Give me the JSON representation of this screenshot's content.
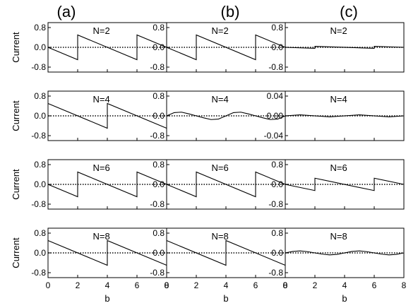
{
  "columns": [
    "(a)",
    "(b)",
    "(c)"
  ],
  "ylabel": "Current",
  "xlabel": "b",
  "x_ticks": [
    0,
    2,
    4,
    6,
    8
  ],
  "chart_data": [
    {
      "type": "line",
      "column": "(a)",
      "annotation": "N=2",
      "xlim": [
        0,
        8
      ],
      "ylim": [
        -1,
        1
      ],
      "y_ticks": [
        0.8,
        0.0,
        -0.8
      ],
      "y_tick_labels": [
        "0.8",
        "0.0",
        "-0.8"
      ],
      "grid": false,
      "series": [
        {
          "x": [
            0,
            1.999,
            2,
            5.999,
            6,
            8
          ],
          "y": [
            0,
            -0.5,
            0.5,
            -0.5,
            0.5,
            0
          ]
        }
      ],
      "reference": {
        "y": 0,
        "style": "dotted"
      }
    },
    {
      "type": "line",
      "column": "(b)",
      "annotation": "N=2",
      "xlim": [
        0,
        8
      ],
      "ylim": [
        -1,
        1
      ],
      "y_ticks": [
        0.8,
        0.0,
        -0.8
      ],
      "y_tick_labels": [
        "0.8",
        "0.0",
        "-0.8"
      ],
      "grid": false,
      "series": [
        {
          "x": [
            0,
            1.999,
            2,
            5.999,
            6,
            8
          ],
          "y": [
            0,
            -0.5,
            0.5,
            -0.5,
            0.5,
            0
          ]
        }
      ],
      "reference": {
        "y": 0,
        "style": "dotted"
      }
    },
    {
      "type": "line",
      "column": "(c)",
      "annotation": "N=2",
      "xlim": [
        0,
        8
      ],
      "ylim": [
        -1,
        1
      ],
      "y_ticks": [
        0.8,
        0.0,
        -0.8
      ],
      "y_tick_labels": [
        "0.8",
        "0.0",
        "-0.8"
      ],
      "grid": false,
      "series": [
        {
          "x": [
            0,
            1.999,
            2,
            5.999,
            6,
            8
          ],
          "y": [
            0,
            -0.04,
            0.04,
            -0.04,
            0.04,
            0
          ]
        }
      ],
      "reference": {
        "y": 0,
        "style": "dotted"
      }
    },
    {
      "type": "line",
      "column": "(a)",
      "annotation": "N=4",
      "xlim": [
        0,
        8
      ],
      "ylim": [
        -1,
        1
      ],
      "y_ticks": [
        0.8,
        0.0,
        -0.8
      ],
      "y_tick_labels": [
        "0.8",
        "0.0",
        "-0.8"
      ],
      "grid": false,
      "series": [
        {
          "x": [
            0,
            3.999,
            4,
            8
          ],
          "y": [
            0.5,
            -0.5,
            0.5,
            -0.5
          ]
        }
      ],
      "reference": {
        "y": 0,
        "style": "dotted"
      }
    },
    {
      "type": "line",
      "column": "(b)",
      "annotation": "N=4",
      "xlim": [
        0,
        8
      ],
      "ylim": [
        -1,
        1
      ],
      "y_ticks": [
        0.8,
        0.0,
        -0.8
      ],
      "y_tick_labels": [
        "0.8",
        "0.0",
        "-0.8"
      ],
      "grid": false,
      "series": [
        {
          "x": [
            0,
            0.5,
            1,
            1.5,
            2,
            2.5,
            3,
            3.5,
            4,
            4.5,
            5,
            5.5,
            6,
            6.5,
            7,
            7.5,
            8
          ],
          "y": [
            0,
            0.13,
            0.15,
            0.08,
            0,
            -0.08,
            -0.15,
            -0.13,
            0,
            0.13,
            0.15,
            0.08,
            0,
            -0.08,
            -0.15,
            -0.13,
            0
          ]
        }
      ],
      "reference": {
        "y": 0,
        "style": "dotted"
      }
    },
    {
      "type": "line",
      "column": "(c)",
      "annotation": "N=4",
      "xlim": [
        0,
        8
      ],
      "ylim": [
        -0.05,
        0.05
      ],
      "y_ticks": [
        0.04,
        0.0,
        -0.04
      ],
      "y_tick_labels": [
        "0.04",
        "0.00",
        "-0.04"
      ],
      "grid": false,
      "series": [
        {
          "x": [
            0,
            1,
            2,
            3,
            4,
            5,
            6,
            7,
            8
          ],
          "y": [
            0,
            0.002,
            0,
            -0.002,
            0,
            0.002,
            0,
            -0.002,
            0
          ]
        }
      ],
      "reference": {
        "y": 0,
        "style": "dotted"
      }
    },
    {
      "type": "line",
      "column": "(a)",
      "annotation": "N=6",
      "xlim": [
        0,
        8
      ],
      "ylim": [
        -1,
        1
      ],
      "y_ticks": [
        0.8,
        0.0,
        -0.8
      ],
      "y_tick_labels": [
        "0.8",
        "0.0",
        "-0.8"
      ],
      "grid": false,
      "series": [
        {
          "x": [
            0,
            1.999,
            2,
            5.999,
            6,
            8
          ],
          "y": [
            0,
            -0.5,
            0.5,
            -0.5,
            0.5,
            0
          ]
        }
      ],
      "reference": {
        "y": 0,
        "style": "dotted"
      }
    },
    {
      "type": "line",
      "column": "(b)",
      "annotation": "N=6",
      "xlim": [
        0,
        8
      ],
      "ylim": [
        -1,
        1
      ],
      "y_ticks": [
        0.8,
        0.0,
        -0.8
      ],
      "y_tick_labels": [
        "0.8",
        "0.0",
        "-0.8"
      ],
      "grid": false,
      "series": [
        {
          "x": [
            0,
            1.999,
            2,
            5.999,
            6,
            8
          ],
          "y": [
            0,
            -0.5,
            0.5,
            -0.5,
            0.5,
            0
          ]
        }
      ],
      "reference": {
        "y": 0,
        "style": "dotted"
      }
    },
    {
      "type": "line",
      "column": "(c)",
      "annotation": "N=6",
      "xlim": [
        0,
        8
      ],
      "ylim": [
        -1,
        1
      ],
      "y_ticks": [
        0.8,
        0.0,
        -0.8
      ],
      "y_tick_labels": [
        "0.8",
        "0.0",
        "-0.8"
      ],
      "grid": false,
      "series": [
        {
          "x": [
            0,
            1.999,
            2,
            5.999,
            6,
            8
          ],
          "y": [
            0,
            -0.25,
            0.25,
            -0.25,
            0.25,
            0
          ]
        }
      ],
      "reference": {
        "y": 0,
        "style": "dotted"
      }
    },
    {
      "type": "line",
      "column": "(a)",
      "annotation": "N=8",
      "xlim": [
        0,
        8
      ],
      "ylim": [
        -1,
        1
      ],
      "y_ticks": [
        0.8,
        0.0,
        -0.8
      ],
      "y_tick_labels": [
        "0.8",
        "0.0",
        "-0.8"
      ],
      "grid": false,
      "series": [
        {
          "x": [
            0,
            3.999,
            4,
            8
          ],
          "y": [
            0.5,
            -0.5,
            0.5,
            -0.5
          ]
        }
      ],
      "reference": {
        "y": 0,
        "style": "dotted"
      }
    },
    {
      "type": "line",
      "column": "(b)",
      "annotation": "N=8",
      "xlim": [
        0,
        8
      ],
      "ylim": [
        -1,
        1
      ],
      "y_ticks": [
        0.8,
        0.0,
        -0.8
      ],
      "y_tick_labels": [
        "0.8",
        "0.0",
        "-0.8"
      ],
      "grid": false,
      "series": [
        {
          "x": [
            0,
            3.999,
            4,
            8
          ],
          "y": [
            0.5,
            -0.5,
            0.5,
            -0.5
          ]
        }
      ],
      "reference": {
        "y": 0,
        "style": "dotted"
      }
    },
    {
      "type": "line",
      "column": "(c)",
      "annotation": "N=8",
      "xlim": [
        0,
        8
      ],
      "ylim": [
        -1,
        1
      ],
      "y_ticks": [
        0.8,
        0.0,
        -0.8
      ],
      "y_tick_labels": [
        "0.8",
        "0.0",
        "-0.8"
      ],
      "grid": false,
      "series": [
        {
          "x": [
            0,
            0.5,
            1,
            1.5,
            2,
            2.5,
            3,
            3.5,
            4,
            4.5,
            5,
            5.5,
            6,
            6.5,
            7,
            7.5,
            8
          ],
          "y": [
            0,
            0.06,
            0.08,
            0.05,
            0,
            -0.05,
            -0.08,
            -0.06,
            0,
            0.06,
            0.08,
            0.05,
            0,
            -0.05,
            -0.08,
            -0.06,
            0
          ]
        }
      ],
      "reference": {
        "y": 0,
        "style": "dotted"
      }
    }
  ]
}
